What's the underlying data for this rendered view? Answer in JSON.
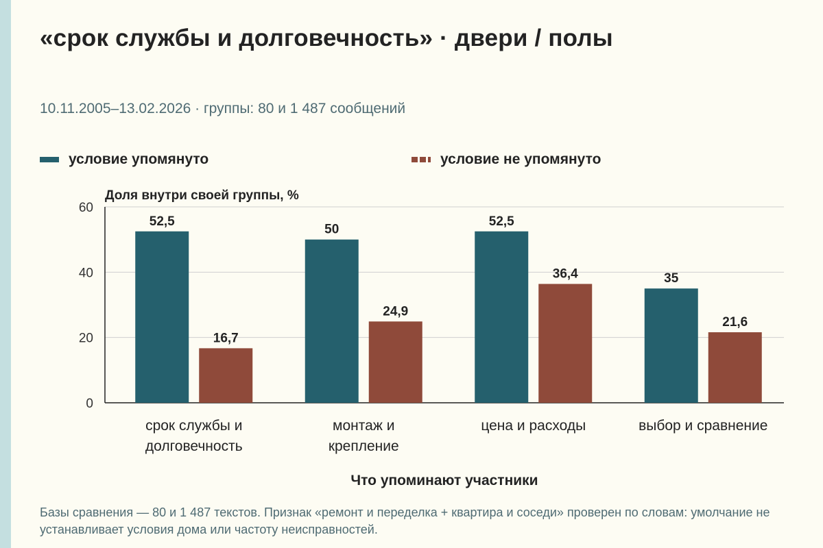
{
  "title": "«срок службы и долговечность» · двери / полы",
  "subtitle": "10.11.2005–13.02.2026 · группы: 80 и 1 487 сообщений",
  "footnote": "Базы сравнения — 80 и 1 487 текстов. Признак «ремонт и переделка + квартира и соседи» проверен по словам: умолчание не устанавливает условия дома или частоту неисправностей.",
  "chart_data": {
    "type": "bar",
    "title": "«срок службы и долговечность» · двери / полы",
    "ylabel": "Доля внутри своей группы, %",
    "xlabel": "Что упоминают участники",
    "ylim": [
      0,
      60
    ],
    "yticks": [
      0,
      20,
      40,
      60
    ],
    "grid": true,
    "legend_position": "top",
    "categories": [
      [
        "срок службы и",
        "долговечность"
      ],
      [
        "монтаж и",
        "крепление"
      ],
      [
        "цена и расходы"
      ],
      [
        "выбор и сравнение"
      ]
    ],
    "series": [
      {
        "name": "условие упомянуто",
        "color": "#25606d",
        "values": [
          52.5,
          50,
          52.5,
          35
        ],
        "labels": [
          "52,5",
          "50",
          "52,5",
          "35"
        ]
      },
      {
        "name": "условие не упомянуто",
        "color": "#8f4a3a",
        "values": [
          16.7,
          24.9,
          36.4,
          21.6
        ],
        "labels": [
          "16,7",
          "24,9",
          "36,4",
          "21,6"
        ]
      }
    ]
  }
}
